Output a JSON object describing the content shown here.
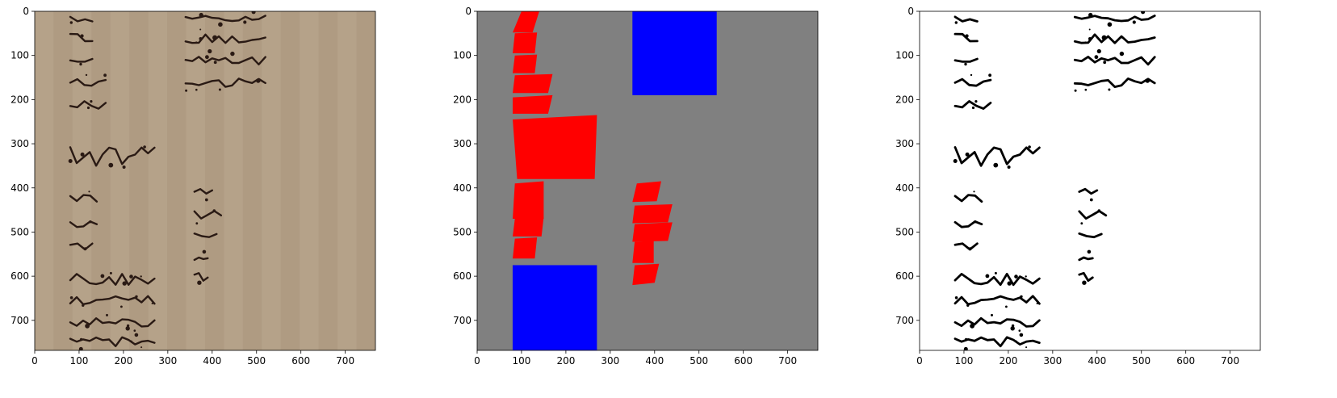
{
  "chart_data": [
    {
      "type": "image",
      "panel": "original-manuscript-scan",
      "xlim": [
        0,
        768
      ],
      "ylim": [
        768,
        0
      ],
      "x_ticks": [
        0,
        100,
        200,
        300,
        400,
        500,
        600,
        700
      ],
      "y_ticks": [
        0,
        100,
        200,
        300,
        400,
        500,
        600,
        700
      ],
      "x_tick_labels": [
        "0",
        "100",
        "200",
        "300",
        "400",
        "500",
        "600",
        "700"
      ],
      "y_tick_labels": [
        "0",
        "100",
        "200",
        "300",
        "400",
        "500",
        "600",
        "700"
      ],
      "background_color": "#b29f86",
      "ink_color": "#2a1a14",
      "handwriting_rows": [
        {
          "x": 80,
          "y": 0,
          "w": 50,
          "h": 30
        },
        {
          "x": 80,
          "y": 40,
          "w": 50,
          "h": 35
        },
        {
          "x": 80,
          "y": 90,
          "w": 50,
          "h": 35
        },
        {
          "x": 80,
          "y": 140,
          "w": 80,
          "h": 40
        },
        {
          "x": 80,
          "y": 190,
          "w": 80,
          "h": 40
        },
        {
          "x": 80,
          "y": 270,
          "w": 190,
          "h": 100
        },
        {
          "x": 80,
          "y": 400,
          "w": 60,
          "h": 40
        },
        {
          "x": 80,
          "y": 460,
          "w": 60,
          "h": 40
        },
        {
          "x": 80,
          "y": 510,
          "w": 50,
          "h": 40
        },
        {
          "x": 340,
          "y": 0,
          "w": 180,
          "h": 30
        },
        {
          "x": 340,
          "y": 40,
          "w": 180,
          "h": 40
        },
        {
          "x": 340,
          "y": 90,
          "w": 180,
          "h": 40
        },
        {
          "x": 340,
          "y": 140,
          "w": 180,
          "h": 40
        },
        {
          "x": 360,
          "y": 390,
          "w": 40,
          "h": 40
        },
        {
          "x": 360,
          "y": 440,
          "w": 60,
          "h": 40
        },
        {
          "x": 360,
          "y": 480,
          "w": 50,
          "h": 40
        },
        {
          "x": 360,
          "y": 540,
          "w": 30,
          "h": 30
        },
        {
          "x": 360,
          "y": 580,
          "w": 30,
          "h": 40
        },
        {
          "x": 80,
          "y": 580,
          "w": 190,
          "h": 50
        },
        {
          "x": 80,
          "y": 630,
          "w": 190,
          "h": 45
        },
        {
          "x": 80,
          "y": 680,
          "w": 190,
          "h": 45
        },
        {
          "x": 80,
          "y": 725,
          "w": 190,
          "h": 43
        }
      ]
    },
    {
      "type": "image",
      "panel": "region-mask",
      "xlim": [
        0,
        768
      ],
      "ylim": [
        768,
        0
      ],
      "x_ticks": [
        0,
        100,
        200,
        300,
        400,
        500,
        600,
        700
      ],
      "y_ticks": [
        0,
        100,
        200,
        300,
        400,
        500,
        600,
        700
      ],
      "x_tick_labels": [
        "0",
        "100",
        "200",
        "300",
        "400",
        "500",
        "600",
        "700"
      ],
      "y_tick_labels": [
        "0",
        "100",
        "200",
        "300",
        "400",
        "500",
        "600",
        "700"
      ],
      "background_color": "#808080",
      "red_color": "#ff0000",
      "blue_color": "#0000ff",
      "blue_rects": [
        {
          "x0": 350,
          "y0": 0,
          "x1": 540,
          "y1": 190
        },
        {
          "x0": 80,
          "y0": 575,
          "x1": 270,
          "y1": 768
        }
      ],
      "red_polygons": [
        [
          [
            100,
            0
          ],
          [
            140,
            0
          ],
          [
            125,
            48
          ],
          [
            80,
            48
          ]
        ],
        [
          [
            85,
            50
          ],
          [
            135,
            48
          ],
          [
            130,
            95
          ],
          [
            80,
            95
          ]
        ],
        [
          [
            85,
            100
          ],
          [
            135,
            98
          ],
          [
            130,
            140
          ],
          [
            80,
            140
          ]
        ],
        [
          [
            85,
            145
          ],
          [
            170,
            142
          ],
          [
            160,
            185
          ],
          [
            80,
            185
          ]
        ],
        [
          [
            80,
            195
          ],
          [
            170,
            190
          ],
          [
            160,
            232
          ],
          [
            80,
            232
          ]
        ],
        [
          [
            80,
            245
          ],
          [
            270,
            235
          ],
          [
            265,
            380
          ],
          [
            90,
            380
          ]
        ],
        [
          [
            85,
            390
          ],
          [
            150,
            385
          ],
          [
            150,
            470
          ],
          [
            80,
            470
          ]
        ],
        [
          [
            85,
            470
          ],
          [
            150,
            467
          ],
          [
            145,
            510
          ],
          [
            80,
            510
          ]
        ],
        [
          [
            85,
            515
          ],
          [
            135,
            512
          ],
          [
            130,
            560
          ],
          [
            80,
            560
          ]
        ],
        [
          [
            360,
            390
          ],
          [
            415,
            385
          ],
          [
            405,
            430
          ],
          [
            350,
            432
          ]
        ],
        [
          [
            355,
            440
          ],
          [
            440,
            437
          ],
          [
            430,
            478
          ],
          [
            350,
            480
          ]
        ],
        [
          [
            355,
            482
          ],
          [
            440,
            478
          ],
          [
            430,
            520
          ],
          [
            350,
            522
          ]
        ],
        [
          [
            355,
            522
          ],
          [
            398,
            520
          ],
          [
            398,
            570
          ],
          [
            350,
            570
          ]
        ],
        [
          [
            355,
            575
          ],
          [
            410,
            572
          ],
          [
            400,
            615
          ],
          [
            350,
            620
          ]
        ]
      ]
    },
    {
      "type": "image",
      "panel": "binarized-regions",
      "xlim": [
        0,
        768
      ],
      "ylim": [
        768,
        0
      ],
      "x_ticks": [
        0,
        100,
        200,
        300,
        400,
        500,
        600,
        700
      ],
      "y_ticks": [
        0,
        100,
        200,
        300,
        400,
        500,
        600,
        700
      ],
      "x_tick_labels": [
        "0",
        "100",
        "200",
        "300",
        "400",
        "500",
        "600",
        "700"
      ],
      "y_tick_labels": [
        "0",
        "100",
        "200",
        "300",
        "400",
        "500",
        "600",
        "700"
      ],
      "background_color": "#ffffff",
      "ink_color": "#000000",
      "ink_regions": [
        {
          "x": 80,
          "y": 0,
          "w": 50,
          "h": 30
        },
        {
          "x": 80,
          "y": 40,
          "w": 50,
          "h": 35
        },
        {
          "x": 80,
          "y": 90,
          "w": 50,
          "h": 35
        },
        {
          "x": 80,
          "y": 140,
          "w": 80,
          "h": 40
        },
        {
          "x": 80,
          "y": 190,
          "w": 80,
          "h": 40
        },
        {
          "x": 80,
          "y": 270,
          "w": 190,
          "h": 100
        },
        {
          "x": 80,
          "y": 400,
          "w": 60,
          "h": 40
        },
        {
          "x": 80,
          "y": 460,
          "w": 60,
          "h": 40
        },
        {
          "x": 80,
          "y": 510,
          "w": 50,
          "h": 40
        },
        {
          "x": 350,
          "y": 0,
          "w": 180,
          "h": 30
        },
        {
          "x": 350,
          "y": 40,
          "w": 180,
          "h": 40
        },
        {
          "x": 350,
          "y": 90,
          "w": 180,
          "h": 40
        },
        {
          "x": 350,
          "y": 140,
          "w": 180,
          "h": 40
        },
        {
          "x": 360,
          "y": 390,
          "w": 40,
          "h": 40
        },
        {
          "x": 360,
          "y": 440,
          "w": 60,
          "h": 40
        },
        {
          "x": 360,
          "y": 480,
          "w": 50,
          "h": 40
        },
        {
          "x": 360,
          "y": 540,
          "w": 30,
          "h": 30
        },
        {
          "x": 360,
          "y": 580,
          "w": 30,
          "h": 40
        },
        {
          "x": 80,
          "y": 580,
          "w": 190,
          "h": 50
        },
        {
          "x": 80,
          "y": 630,
          "w": 190,
          "h": 45
        },
        {
          "x": 80,
          "y": 680,
          "w": 190,
          "h": 45
        },
        {
          "x": 80,
          "y": 725,
          "w": 190,
          "h": 43
        }
      ]
    }
  ]
}
